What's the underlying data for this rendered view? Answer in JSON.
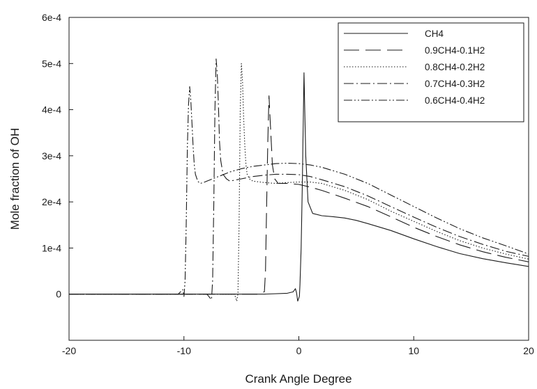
{
  "chart_data": {
    "type": "line",
    "title": "",
    "xlabel": "Crank Angle Degree",
    "ylabel": "Mole fraction of OH",
    "xlim": [
      -20,
      20
    ],
    "ylim": [
      -0.0001,
      0.0006
    ],
    "x_ticks": [
      -20,
      -10,
      0,
      10,
      20
    ],
    "x_tick_labels": [
      "-20",
      "-10",
      "0",
      "10",
      "20"
    ],
    "y_ticks": [
      0,
      0.0001,
      0.0002,
      0.0003,
      0.0004,
      0.0005,
      0.0006
    ],
    "y_tick_labels": [
      "0",
      "1e-4",
      "2e-4",
      "3e-4",
      "4e-4",
      "5e-4",
      "6e-4"
    ],
    "grid": false,
    "legend_position": "top-right",
    "series": [
      {
        "name": "CH4",
        "line_style": "solid",
        "color": "#1a1a1a",
        "x": [
          -20,
          -3,
          -1,
          -0.5,
          -0.3,
          -0.2,
          -0.1,
          0.05,
          0.1,
          0.2,
          0.3,
          0.45,
          0.6,
          0.8,
          1.2,
          2,
          3,
          4,
          5,
          6,
          8,
          10,
          12,
          14,
          16,
          18,
          20
        ],
        "y": [
          0,
          0,
          2e-06,
          5e-06,
          1.2e-05,
          3e-06,
          -1.5e-05,
          -5e-06,
          2e-05,
          0.0001,
          0.00023,
          0.00048,
          0.0003,
          0.0002,
          0.000175,
          0.00017,
          0.000168,
          0.000165,
          0.00016,
          0.000153,
          0.000138,
          0.00012,
          0.000103,
          8.8e-05,
          7.7e-05,
          6.8e-05,
          6e-05
        ]
      },
      {
        "name": "0.9CH4-0.1H2",
        "line_style": "long-dash",
        "color": "#1a1a1a",
        "x": [
          -20,
          -3.6,
          -3.3,
          -3.0,
          -2.9,
          -2.8,
          -2.7,
          -2.6,
          -2.5,
          -2.3,
          -2.1,
          -1.8,
          -1.5,
          -1,
          0,
          1,
          2,
          4,
          6,
          8,
          10,
          12,
          14,
          16,
          18,
          20
        ],
        "y": [
          0,
          0,
          3e-06,
          5e-06,
          5e-05,
          0.0002,
          0.00033,
          0.00043,
          0.00038,
          0.00028,
          0.00025,
          0.00024,
          0.00024,
          0.00024,
          0.000238,
          0.000232,
          0.000225,
          0.000208,
          0.00019,
          0.000168,
          0.000145,
          0.000125,
          0.000107,
          9.2e-05,
          8e-05,
          7e-05
        ]
      },
      {
        "name": "0.8CH4-0.2H2",
        "line_style": "dotted",
        "color": "#1a1a1a",
        "x": [
          -20,
          -5.6,
          -5.4,
          -5.3,
          -5.2,
          -5.1,
          -5.0,
          -4.9,
          -4.8,
          -4.7,
          -4.6,
          -4.5,
          -4.3,
          -4,
          -3,
          -2,
          -1,
          0,
          1,
          2,
          4,
          6,
          8,
          10,
          12,
          14,
          16,
          18,
          20
        ],
        "y": [
          0,
          0,
          -1.5e-05,
          1e-06,
          0.00015,
          0.0004,
          0.0005,
          0.00046,
          0.00038,
          0.00032,
          0.00028,
          0.00026,
          0.00025,
          0.000245,
          0.000242,
          0.00024,
          0.000242,
          0.000243,
          0.000243,
          0.00024,
          0.000225,
          0.000205,
          0.00018,
          0.000158,
          0.000136,
          0.000116,
          0.0001,
          8.7e-05,
          7.6e-05
        ]
      },
      {
        "name": "0.7CH4-0.3H2",
        "line_style": "dash-dot",
        "color": "#1a1a1a",
        "x": [
          -20,
          -8.0,
          -7.6,
          -7.5,
          -7.4,
          -7.3,
          -7.2,
          -7.1,
          -7.0,
          -6.9,
          -6.8,
          -6.6,
          -6.3,
          -6,
          -5,
          -4,
          -3,
          -2,
          -1,
          0,
          1,
          2,
          4,
          6,
          8,
          10,
          12,
          14,
          16,
          18,
          20
        ],
        "y": [
          0,
          0,
          -1.2e-05,
          3e-05,
          0.0002,
          0.0004,
          0.00051,
          0.00048,
          0.00041,
          0.00033,
          0.00029,
          0.00026,
          0.00025,
          0.000245,
          0.00025,
          0.000255,
          0.000258,
          0.00026,
          0.00026,
          0.000259,
          0.000255,
          0.000248,
          0.000233,
          0.000213,
          0.00019,
          0.000167,
          0.000145,
          0.000125,
          0.000108,
          9.3e-05,
          8.2e-05
        ]
      },
      {
        "name": "0.6CH4-0.4H2",
        "line_style": "dash-dot-dot",
        "color": "#1a1a1a",
        "x": [
          -20,
          -10.5,
          -10.1,
          -10.0,
          -9.9,
          -9.8,
          -9.7,
          -9.6,
          -9.5,
          -9.4,
          -9.3,
          -9.2,
          -9.1,
          -9.0,
          -8.8,
          -8.6,
          -8.3,
          -8.0,
          -7.5,
          -7,
          -6,
          -5,
          -4,
          -3,
          -2,
          -1,
          0,
          1,
          2,
          4,
          6,
          8,
          10,
          12,
          14,
          16,
          18,
          20
        ],
        "y": [
          0,
          0,
          1e-05,
          -5e-06,
          3e-05,
          0.00015,
          0.00032,
          0.00041,
          0.00045,
          0.00042,
          0.00037,
          0.00032,
          0.00028,
          0.00026,
          0.000245,
          0.00024,
          0.000242,
          0.000245,
          0.00025,
          0.000255,
          0.000265,
          0.000272,
          0.000277,
          0.00028,
          0.000283,
          0.000284,
          0.000283,
          0.00028,
          0.000275,
          0.00026,
          0.00024,
          0.000215,
          0.00019,
          0.000165,
          0.000142,
          0.000122,
          0.000105,
          8.7e-05
        ]
      }
    ]
  }
}
